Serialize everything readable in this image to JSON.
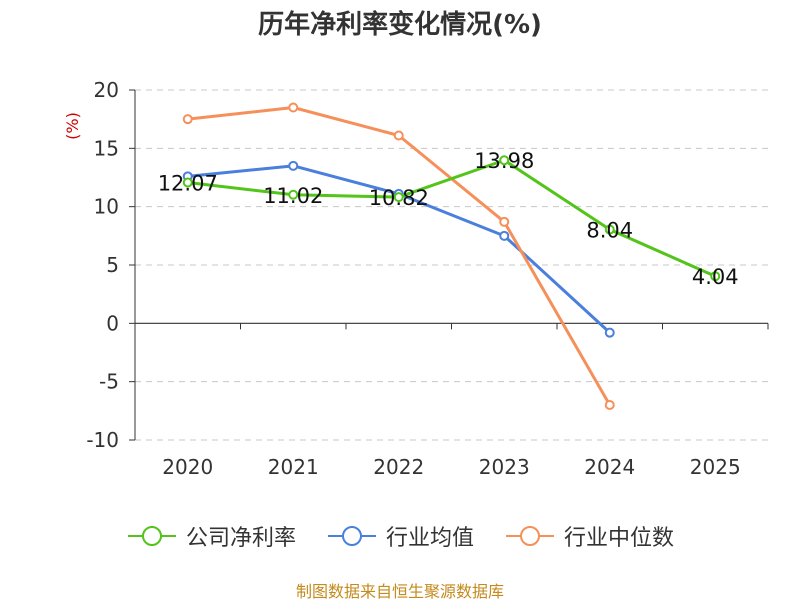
{
  "chart_data": {
    "type": "line",
    "title": "历年净利率变化情况(%)",
    "ylabel": "(%)",
    "xlabel": "",
    "categories": [
      "2020",
      "2021",
      "2022",
      "2023",
      "2024",
      "2025"
    ],
    "ylim": [
      -10,
      20
    ],
    "yticks": [
      20,
      15,
      10,
      5,
      0,
      -5,
      -10
    ],
    "grid": true,
    "legend": "bottom",
    "series": [
      {
        "name": "公司净利率",
        "color": "#52c41a",
        "values": [
          12.07,
          11.02,
          10.82,
          13.98,
          8.04,
          4.04
        ],
        "labels": [
          "12.07",
          "11.02",
          "10.82",
          "13.98",
          "8.04",
          "4.04"
        ]
      },
      {
        "name": "行业均值",
        "color": "#4a7fdc",
        "values": [
          12.6,
          13.5,
          11.1,
          7.5,
          -0.8,
          null
        ]
      },
      {
        "name": "行业中位数",
        "color": "#f5905a",
        "values": [
          17.5,
          18.5,
          16.1,
          8.7,
          -7.0,
          null
        ]
      }
    ]
  },
  "source": "制图数据来自恒生聚源数据库"
}
